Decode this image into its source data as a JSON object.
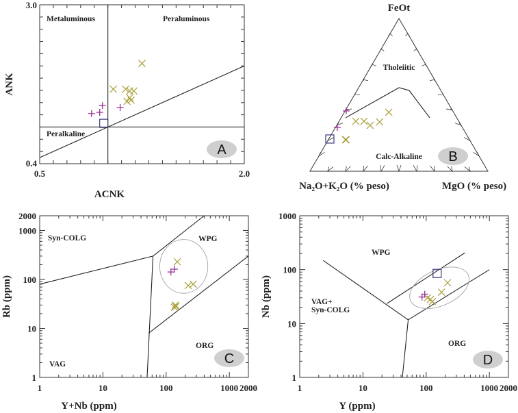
{
  "colors": {
    "plus": "#9b2f96",
    "cross": "#a9a03c",
    "square": "#3a3a7e",
    "panel_label_fill": "#cfcfcf"
  },
  "chart_data": [
    {
      "id": "A",
      "type": "scatter",
      "panel_label": "A",
      "xlabel": "ACNK",
      "ylabel": "ANK",
      "xlim": [
        0.5,
        2.0
      ],
      "ylim": [
        0.4,
        3.0
      ],
      "scale": "linear",
      "x_tick_labels": [
        "0.5",
        "2.0"
      ],
      "y_tick_labels": [
        "0.4",
        "3.0"
      ],
      "region_labels": [
        "Metaluminous",
        "Peraluminous",
        "Peralkaline"
      ],
      "boundaries": [
        [
          [
            1.0,
            0.4
          ],
          [
            1.0,
            3.0
          ]
        ],
        [
          [
            0.5,
            1.0
          ],
          [
            2.0,
            1.0
          ]
        ],
        [
          [
            0.5,
            0.5
          ],
          [
            2.0,
            2.0
          ]
        ]
      ],
      "series": [
        {
          "marker": "cross",
          "points": [
            [
              1.25,
              2.04
            ],
            [
              1.04,
              1.62
            ],
            [
              1.13,
              1.62
            ],
            [
              1.16,
              1.59
            ],
            [
              1.19,
              1.59
            ],
            [
              1.16,
              1.48
            ],
            [
              1.14,
              1.42
            ],
            [
              1.17,
              1.44
            ]
          ]
        },
        {
          "marker": "plus",
          "points": [
            [
              0.88,
              1.22
            ],
            [
              0.94,
              1.24
            ],
            [
              0.96,
              1.35
            ],
            [
              1.09,
              1.32
            ]
          ]
        },
        {
          "marker": "square",
          "points": [
            [
              0.97,
              1.06
            ]
          ]
        }
      ]
    },
    {
      "id": "B",
      "type": "ternary",
      "panel_label": "B",
      "apex_labels": {
        "top": "FeOt",
        "left": "Na₂O+K₂O (% peso)",
        "right": "MgO (% peso)"
      },
      "region_labels": [
        "Tholeiitic",
        "Calc-Alkaline"
      ],
      "components_order": [
        "FeOt",
        "MgO"
      ],
      "boundaries": [
        [
          [
            0.35,
            0.025
          ],
          [
            0.547,
            0.227
          ],
          [
            0.529,
            0.293
          ],
          [
            0.35,
            0.498
          ]
        ]
      ],
      "series": [
        {
          "marker": "cross",
          "points": [
            [
              0.327,
              0.094
            ],
            [
              0.327,
              0.14
            ],
            [
              0.3,
              0.188
            ],
            [
              0.323,
              0.23
            ],
            [
              0.386,
              0.25
            ],
            [
              0.206,
              0.097
            ],
            [
              0.206,
              0.1
            ]
          ]
        },
        {
          "marker": "plus",
          "points": [
            [
              0.395,
              0.006
            ],
            [
              0.287,
              0.01
            ]
          ]
        },
        {
          "marker": "square",
          "points": [
            [
              0.211,
              0.006
            ]
          ]
        }
      ]
    },
    {
      "id": "C",
      "type": "scatter",
      "panel_label": "C",
      "xlabel": "Y+Nb (ppm)",
      "ylabel": "Rb (ppm)",
      "xlim": [
        1,
        2000
      ],
      "ylim": [
        1,
        2000
      ],
      "scale": "log",
      "x_tick_labels": [
        "1",
        "10",
        "100",
        "1000",
        "2000"
      ],
      "x_ticks": [
        1,
        10,
        100,
        1000,
        2000
      ],
      "y_tick_labels": [
        "1",
        "10",
        "100",
        "1000",
        "2000"
      ],
      "y_ticks": [
        1,
        10,
        100,
        1000,
        2000
      ],
      "region_labels": [
        "Syn-COLG",
        "WPG",
        "ORG",
        "VAG"
      ],
      "boundaries": [
        [
          [
            1,
            80
          ],
          [
            62,
            300
          ]
        ],
        [
          [
            62,
            300
          ],
          [
            400,
            2000
          ]
        ],
        [
          [
            50,
            1
          ],
          [
            62,
            300
          ]
        ],
        [
          [
            53,
            8
          ],
          [
            2000,
            300
          ]
        ]
      ],
      "field": {
        "center": [
          190,
          185
        ],
        "log_radius": [
          0.38,
          0.55
        ]
      },
      "series": [
        {
          "marker": "cross",
          "points": [
            [
              150,
              230
            ],
            [
              224,
              75
            ],
            [
              268,
              80
            ],
            [
              142,
              28
            ],
            [
              135,
              27
            ],
            [
              140,
              30
            ]
          ]
        },
        {
          "marker": "plus",
          "points": [
            [
              135,
              162
            ],
            [
              119,
              142
            ]
          ]
        }
      ]
    },
    {
      "id": "D",
      "type": "scatter",
      "panel_label": "D",
      "xlabel": "Y (ppm)",
      "ylabel": "Nb (ppm)",
      "xlim": [
        1,
        2000
      ],
      "ylim": [
        1,
        1000
      ],
      "scale": "log",
      "x_tick_labels": [
        "1",
        "10",
        "100",
        "1000",
        "2000"
      ],
      "x_ticks": [
        1,
        10,
        100,
        1000,
        2000
      ],
      "y_tick_labels": [
        "1",
        "10",
        "100",
        "1000"
      ],
      "y_ticks": [
        1,
        10,
        100,
        1000
      ],
      "region_labels": [
        "WPG",
        "VAG+",
        "Syn-COLG",
        "ORG"
      ],
      "boundaries": [
        [
          [
            2.35,
            148
          ],
          [
            52,
            11.7
          ]
        ],
        [
          [
            52,
            11.7
          ],
          [
            42,
            1
          ]
        ],
        [
          [
            52,
            11.7
          ],
          [
            1000,
            100
          ]
        ],
        [
          [
            24,
            23.5
          ],
          [
            410,
            205
          ]
        ]
      ],
      "field": {
        "center": [
          162,
          46
        ],
        "log_radius": [
          0.5,
          0.33
        ]
      },
      "series": [
        {
          "marker": "cross",
          "points": [
            [
              218,
              57
            ],
            [
              175,
              38
            ],
            [
              117,
              28
            ],
            [
              125,
              25.5
            ],
            [
              105,
              30
            ]
          ]
        },
        {
          "marker": "plus",
          "points": [
            [
              95,
              35
            ],
            [
              86,
              31
            ]
          ]
        },
        {
          "marker": "square",
          "points": [
            [
              149,
              85
            ]
          ]
        }
      ]
    }
  ]
}
